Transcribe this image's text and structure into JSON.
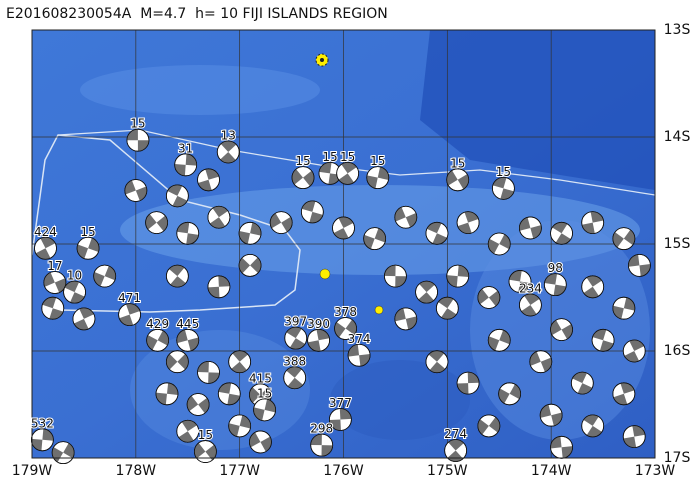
{
  "map": {
    "title": "E201608230054A  M=4.7  h= 10 FIJI ISLANDS REGION",
    "xlim": [
      179,
      173
    ],
    "ylim": [
      13,
      17
    ],
    "xticks": [
      {
        "value": 179,
        "label": "179W"
      },
      {
        "value": 178,
        "label": "178W"
      },
      {
        "value": 177,
        "label": "177W"
      },
      {
        "value": 176,
        "label": "176W"
      },
      {
        "value": 175,
        "label": "175W"
      },
      {
        "value": 174,
        "label": "174W"
      },
      {
        "value": 173,
        "label": "173W"
      }
    ],
    "yticks": [
      {
        "value": 13,
        "label": "13S"
      },
      {
        "value": 14,
        "label": "14S"
      },
      {
        "value": 15,
        "label": "15S"
      },
      {
        "value": 16,
        "label": "16S"
      },
      {
        "value": 17,
        "label": "17S"
      }
    ],
    "grid": true,
    "events": [
      {
        "label": "15",
        "lon": 177.98,
        "lat": 14.03
      },
      {
        "label": "13",
        "lon": 177.11,
        "lat": 14.14
      },
      {
        "label": "31",
        "lon": 177.52,
        "lat": 14.26
      },
      {
        "label": "15",
        "lon": 176.39,
        "lat": 14.38
      },
      {
        "label": "15",
        "lon": 176.13,
        "lat": 14.34
      },
      {
        "label": "15",
        "lon": 175.96,
        "lat": 14.34
      },
      {
        "label": "15",
        "lon": 175.67,
        "lat": 14.38
      },
      {
        "label": "15",
        "lon": 174.9,
        "lat": 14.4
      },
      {
        "label": "15",
        "lon": 174.46,
        "lat": 14.48
      },
      {
        "label": "424",
        "lon": 178.87,
        "lat": 15.04
      },
      {
        "label": "15",
        "lon": 178.46,
        "lat": 15.04
      },
      {
        "label": "17",
        "lon": 178.78,
        "lat": 15.36
      },
      {
        "label": "10",
        "lon": 178.59,
        "lat": 15.45
      },
      {
        "label": "471",
        "lon": 178.06,
        "lat": 15.66
      },
      {
        "label": "429",
        "lon": 177.79,
        "lat": 15.9
      },
      {
        "label": "445",
        "lon": 177.5,
        "lat": 15.9
      },
      {
        "label": "397",
        "lon": 176.46,
        "lat": 15.88
      },
      {
        "label": "390",
        "lon": 176.24,
        "lat": 15.9
      },
      {
        "label": "378",
        "lon": 175.98,
        "lat": 15.79
      },
      {
        "label": "374",
        "lon": 175.85,
        "lat": 16.04
      },
      {
        "label": "388",
        "lon": 176.47,
        "lat": 16.25
      },
      {
        "label": "377",
        "lon": 176.03,
        "lat": 16.64
      },
      {
        "label": "415",
        "lon": 176.8,
        "lat": 16.41
      },
      {
        "label": "298",
        "lon": 176.21,
        "lat": 16.88
      },
      {
        "label": "274",
        "lon": 174.92,
        "lat": 16.93
      },
      {
        "label": "532",
        "lon": 178.9,
        "lat": 16.83
      },
      {
        "label": "15",
        "lon": 177.33,
        "lat": 16.94
      },
      {
        "label": "98",
        "lon": 173.96,
        "lat": 15.38
      },
      {
        "label": "234",
        "lon": 174.2,
        "lat": 15.57
      },
      {
        "label": "15",
        "lon": 176.76,
        "lat": 16.55
      }
    ],
    "other_events": [
      [
        177.8,
        14.8
      ],
      [
        177.5,
        14.9
      ],
      [
        177.2,
        14.75
      ],
      [
        176.9,
        14.9
      ],
      [
        176.6,
        14.8
      ],
      [
        176.3,
        14.7
      ],
      [
        176.0,
        14.85
      ],
      [
        175.7,
        14.95
      ],
      [
        175.4,
        14.75
      ],
      [
        175.1,
        14.9
      ],
      [
        174.8,
        14.8
      ],
      [
        174.5,
        15.0
      ],
      [
        174.2,
        14.85
      ],
      [
        173.9,
        14.9
      ],
      [
        173.6,
        14.8
      ],
      [
        173.3,
        14.95
      ],
      [
        173.15,
        15.2
      ],
      [
        177.6,
        15.3
      ],
      [
        177.2,
        15.4
      ],
      [
        176.9,
        15.2
      ],
      [
        175.5,
        15.3
      ],
      [
        175.2,
        15.45
      ],
      [
        174.9,
        15.3
      ],
      [
        174.6,
        15.5
      ],
      [
        174.3,
        15.35
      ],
      [
        173.6,
        15.4
      ],
      [
        173.3,
        15.6
      ],
      [
        173.9,
        15.8
      ],
      [
        173.5,
        15.9
      ],
      [
        173.2,
        16.0
      ],
      [
        174.5,
        15.9
      ],
      [
        174.1,
        16.1
      ],
      [
        173.7,
        16.3
      ],
      [
        173.3,
        16.4
      ],
      [
        174.4,
        16.4
      ],
      [
        174.0,
        16.6
      ],
      [
        173.6,
        16.7
      ],
      [
        173.2,
        16.8
      ],
      [
        174.6,
        16.7
      ],
      [
        173.9,
        16.9
      ],
      [
        175.1,
        16.1
      ],
      [
        174.8,
        16.3
      ],
      [
        177.6,
        16.1
      ],
      [
        177.3,
        16.2
      ],
      [
        177.0,
        16.1
      ],
      [
        177.7,
        16.4
      ],
      [
        177.4,
        16.5
      ],
      [
        177.1,
        16.4
      ],
      [
        177.5,
        16.75
      ],
      [
        177.0,
        16.7
      ],
      [
        176.8,
        16.85
      ],
      [
        178.8,
        15.6
      ],
      [
        178.5,
        15.7
      ],
      [
        178.3,
        15.3
      ],
      [
        178.0,
        14.5
      ],
      [
        177.6,
        14.55
      ],
      [
        177.3,
        14.4
      ],
      [
        178.7,
        16.95
      ],
      [
        175.4,
        15.7
      ],
      [
        175.0,
        15.6
      ]
    ]
  }
}
